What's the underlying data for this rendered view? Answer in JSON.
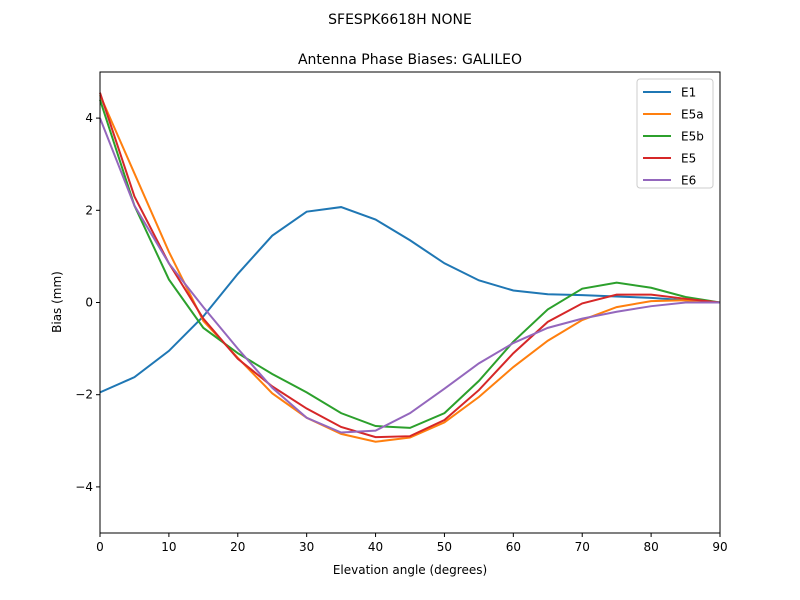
{
  "suptitle": "SFESPK6618H     NONE",
  "chart_data": {
    "type": "line",
    "title": "Antenna Phase Biases: GALILEO",
    "xlabel": "Elevation angle (degrees)",
    "ylabel": "Bias (mm)",
    "xlim": [
      0,
      90
    ],
    "ylim": [
      -5,
      5
    ],
    "xticks": [
      0,
      10,
      20,
      30,
      40,
      50,
      60,
      70,
      80,
      90
    ],
    "yticks": [
      -4,
      -2,
      0,
      2,
      4
    ],
    "ytick_labels": [
      "−4",
      "−2",
      "0",
      "2",
      "4"
    ],
    "grid": false,
    "legend_position": "top-right",
    "x": [
      0,
      5,
      10,
      15,
      20,
      25,
      30,
      35,
      40,
      45,
      50,
      55,
      60,
      65,
      70,
      75,
      80,
      85,
      90
    ],
    "series": [
      {
        "name": "E1",
        "color": "#1f77b4",
        "values": [
          -1.95,
          -1.62,
          -1.05,
          -0.3,
          0.62,
          1.45,
          1.97,
          2.07,
          1.8,
          1.35,
          0.85,
          0.48,
          0.26,
          0.18,
          0.16,
          0.13,
          0.1,
          0.05,
          0
        ]
      },
      {
        "name": "E5a",
        "color": "#ff7f0e",
        "values": [
          4.5,
          2.8,
          1.1,
          -0.4,
          -1.2,
          -1.97,
          -2.5,
          -2.85,
          -3.02,
          -2.93,
          -2.6,
          -2.05,
          -1.4,
          -0.83,
          -0.38,
          -0.1,
          0.03,
          0.05,
          0
        ]
      },
      {
        "name": "E5b",
        "color": "#2ca02c",
        "values": [
          4.4,
          2.1,
          0.5,
          -0.55,
          -1.1,
          -1.55,
          -1.95,
          -2.4,
          -2.68,
          -2.72,
          -2.4,
          -1.7,
          -0.85,
          -0.15,
          0.3,
          0.43,
          0.32,
          0.12,
          0
        ]
      },
      {
        "name": "E5",
        "color": "#d62728",
        "values": [
          4.55,
          2.3,
          0.85,
          -0.35,
          -1.22,
          -1.82,
          -2.3,
          -2.7,
          -2.92,
          -2.9,
          -2.55,
          -1.9,
          -1.1,
          -0.42,
          -0.02,
          0.17,
          0.17,
          0.08,
          0
        ]
      },
      {
        "name": "E6",
        "color": "#9467bd",
        "values": [
          4.0,
          2.1,
          0.85,
          -0.1,
          -1.0,
          -1.85,
          -2.5,
          -2.82,
          -2.78,
          -2.4,
          -1.87,
          -1.32,
          -0.88,
          -0.55,
          -0.35,
          -0.2,
          -0.08,
          0.0,
          0
        ]
      }
    ]
  }
}
